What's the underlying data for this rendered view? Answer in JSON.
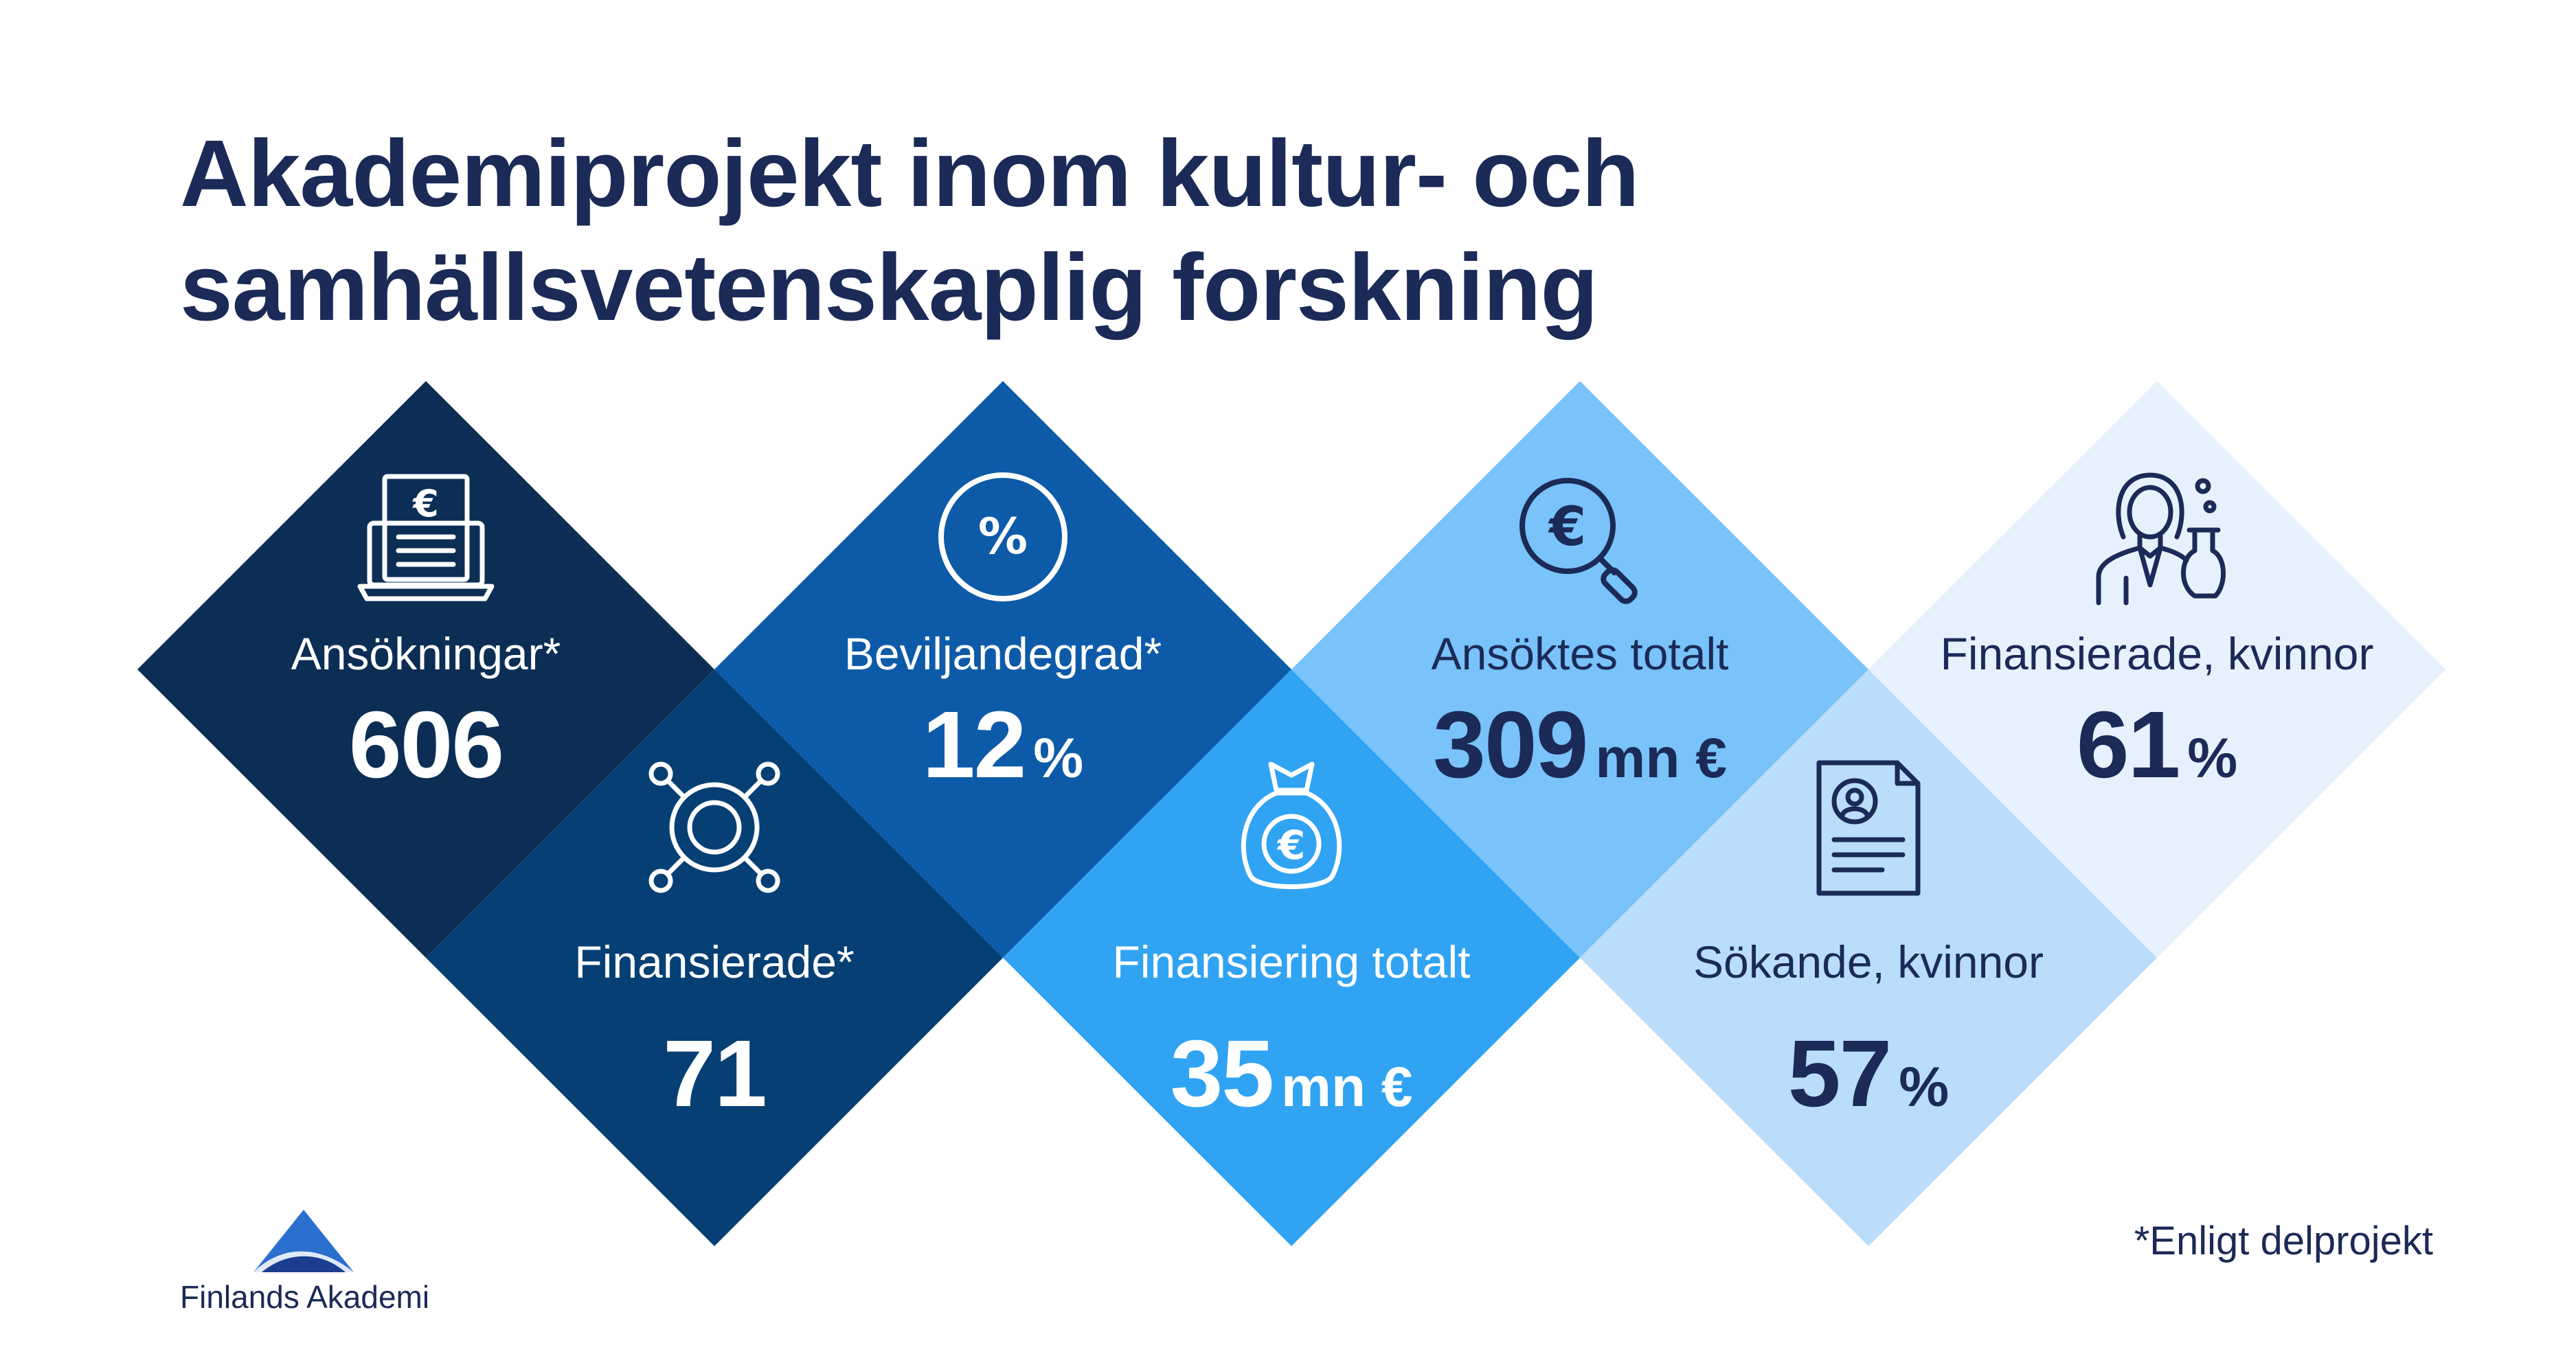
{
  "title": {
    "line1": "Akademiprojekt inom kultur- och",
    "line2": "samhällsvetenskaplig forskning"
  },
  "stats": [
    {
      "label": "Ansökningar*",
      "value": "606",
      "unit": "",
      "icon": "document-laptop-euro-icon",
      "fill": "#0c2e55"
    },
    {
      "label": "Finansierade*",
      "value": "71",
      "unit": "",
      "icon": "circular-network-icon",
      "fill": "#063f73"
    },
    {
      "label": "Beviljandegrad*",
      "value": "12",
      "unit": "%",
      "icon": "percent-icon",
      "fill": "#0d5ba8"
    },
    {
      "label": "Finansiering totalt",
      "value": "35",
      "unit": "mn €",
      "icon": "money-bag-euro-icon",
      "fill": "#30a3f3"
    },
    {
      "label": "Ansöktes totalt",
      "value": "309",
      "unit": "mn €",
      "icon": "euro-magnifier-icon",
      "fill": "#79c2fa"
    },
    {
      "label": "Sökande, kvinnor",
      "value": "57",
      "unit": "%",
      "icon": "document-profile-icon",
      "fill": "#b9ddfb"
    },
    {
      "label": "Finansierade, kvinnor",
      "value": "61",
      "unit": "%",
      "icon": "woman-scientist-icon",
      "fill": "#e6f1fd"
    }
  ],
  "footnote": "*Enligt delprojekt",
  "logo": {
    "text": "Finlands Akademi",
    "icon": "triangle-logo-icon"
  },
  "colors": {
    "title": "#1b2a57",
    "text_light": "#ffffff",
    "text_dark": "#1b2a57"
  }
}
